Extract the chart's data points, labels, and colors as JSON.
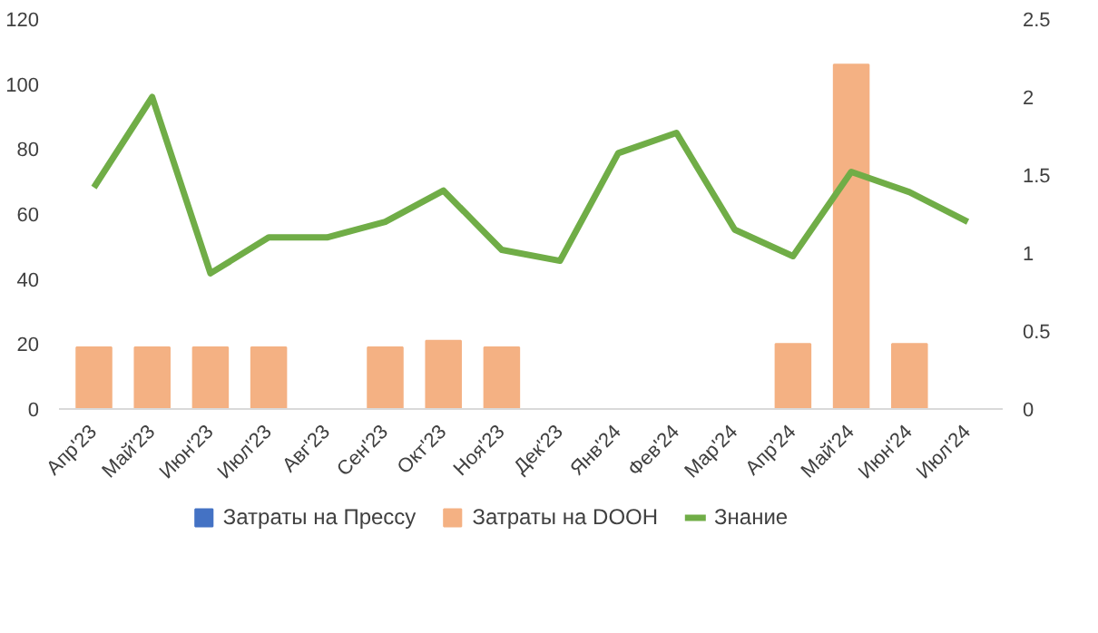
{
  "chart_data": {
    "type": "bar",
    "categories": [
      "Апр'23",
      "Май'23",
      "Июн'23",
      "Июл'23",
      "Авг'23",
      "Сен'23",
      "Окт'23",
      "Ноя'23",
      "Дек'23",
      "Янв'24",
      "Фев'24",
      "Мар'24",
      "Апр'24",
      "Май'24",
      "Июн'24",
      "Июл'24"
    ],
    "series": [
      {
        "name": "Затраты на Прессу",
        "color": "#4472c4",
        "values": [
          null,
          null,
          null,
          null,
          null,
          null,
          null,
          null,
          null,
          null,
          null,
          null,
          null,
          null,
          null,
          null
        ]
      },
      {
        "name": "Затраты на DOOH",
        "color": "#f4b183",
        "values": [
          19,
          19,
          19,
          19,
          null,
          19,
          21,
          19,
          null,
          null,
          null,
          null,
          20,
          106,
          20,
          null
        ]
      },
      {
        "name": "Знание",
        "color": "#70ad47",
        "type": "line",
        "axis": "y2",
        "values": [
          1.42,
          2.0,
          0.87,
          1.1,
          1.1,
          1.2,
          1.4,
          1.02,
          0.95,
          1.64,
          1.77,
          1.15,
          0.98,
          1.52,
          1.39,
          1.2
        ]
      }
    ],
    "ylim": [
      0,
      120
    ],
    "yticks": [
      0,
      20,
      40,
      60,
      80,
      100,
      120
    ],
    "y2lim": [
      0,
      2.5
    ],
    "y2ticks": [
      0,
      0.5,
      1,
      1.5,
      2,
      2.5
    ],
    "grid": false,
    "legend": "bottom",
    "marker": "none",
    "line_style": "solid"
  }
}
